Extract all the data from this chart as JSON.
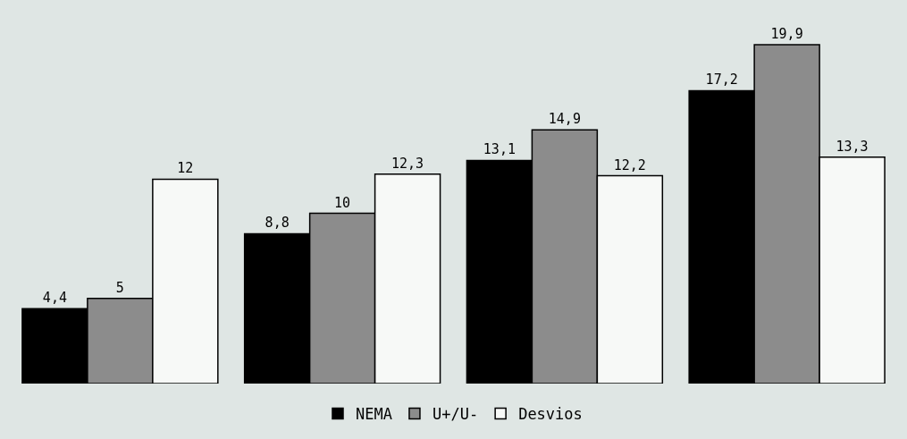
{
  "chart_data": {
    "type": "bar",
    "categories": [
      null,
      null,
      null,
      null
    ],
    "series": [
      {
        "name": "NEMA",
        "color": "#000000",
        "values": [
          4.4,
          8.8,
          13.1,
          17.2
        ],
        "value_labels": [
          "4,4",
          "8,8",
          "13,1",
          "17,2"
        ]
      },
      {
        "name": "U+/U-",
        "color": "#8c8c8c",
        "values": [
          5,
          10,
          14.9,
          19.9
        ],
        "value_labels": [
          "5",
          "10",
          "14,9",
          "19,9"
        ]
      },
      {
        "name": "Desvios",
        "color": "#f7f9f7",
        "values": [
          12,
          12.3,
          12.2,
          13.3
        ],
        "value_labels": [
          "12",
          "12,3",
          "12,2",
          "13,3"
        ]
      }
    ],
    "legend": "bottom",
    "tick_labels": false
  }
}
